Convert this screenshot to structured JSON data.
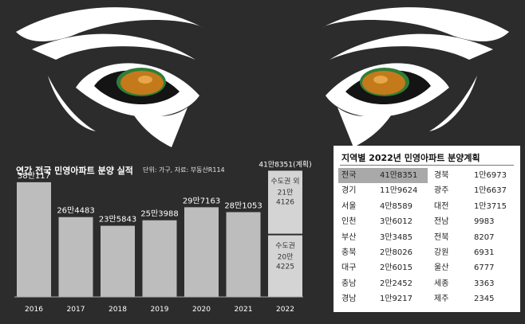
{
  "chart_data": {
    "type": "bar",
    "title": "연간 전국 민영아파트 분양 실적",
    "unit_note": "단위: 가구, 자료: 부동산R114",
    "categories": [
      "2016",
      "2017",
      "2018",
      "2019",
      "2020",
      "2021",
      "2022"
    ],
    "values": [
      380117,
      264483,
      235843,
      253988,
      297163,
      281053,
      418351
    ],
    "labels": [
      "38만117",
      "26만4483",
      "23만5843",
      "25만3988",
      "29만7163",
      "28만1053",
      "41만8351(계획)"
    ],
    "stacked_2022": [
      {
        "label": "수도권 외",
        "value_text": "21만 4126",
        "value": 214126
      },
      {
        "label": "수도권",
        "value_text": "20만 4225",
        "value": 204225
      }
    ],
    "ylim": [
      0,
      430000
    ]
  },
  "regional_plan": {
    "title": "지역별 2022년 민영아파트 분양계획",
    "left": [
      {
        "region": "전국",
        "value": "41만8351"
      },
      {
        "region": "경기",
        "value": "11만9624"
      },
      {
        "region": "서울",
        "value": "4만8589"
      },
      {
        "region": "인천",
        "value": "3만6012"
      },
      {
        "region": "부산",
        "value": "3만3485"
      },
      {
        "region": "충북",
        "value": "2만8026"
      },
      {
        "region": "대구",
        "value": "2만6015"
      },
      {
        "region": "충남",
        "value": "2만2452"
      },
      {
        "region": "경남",
        "value": "1만9217"
      }
    ],
    "right": [
      {
        "region": "경북",
        "value": "1만6973"
      },
      {
        "region": "광주",
        "value": "1만6637"
      },
      {
        "region": "대전",
        "value": "1만3715"
      },
      {
        "region": "전남",
        "value": "9983"
      },
      {
        "region": "전북",
        "value": "8207"
      },
      {
        "region": "강원",
        "value": "6931"
      },
      {
        "region": "울산",
        "value": "6777"
      },
      {
        "region": "세종",
        "value": "3363"
      },
      {
        "region": "제주",
        "value": "2345"
      }
    ]
  },
  "colors": {
    "background": "#2c2c2c",
    "bar": "#bdbdbd",
    "bar_2022": "#d4d4d4",
    "iris": "#c47a1a"
  }
}
